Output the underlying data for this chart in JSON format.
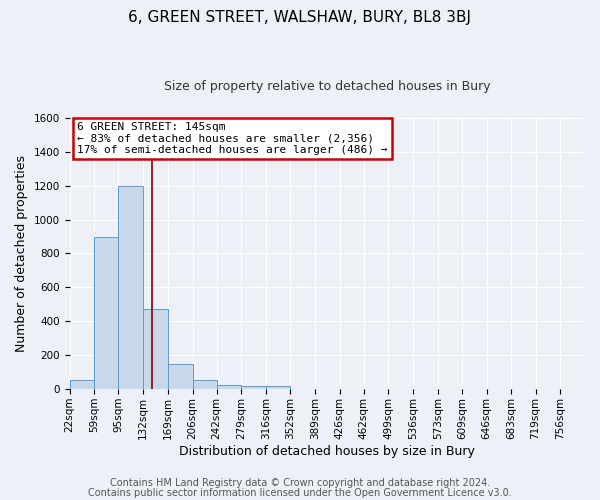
{
  "title": "6, GREEN STREET, WALSHAW, BURY, BL8 3BJ",
  "subtitle": "Size of property relative to detached houses in Bury",
  "xlabel": "Distribution of detached houses by size in Bury",
  "ylabel": "Number of detached properties",
  "footer1": "Contains HM Land Registry data © Crown copyright and database right 2024.",
  "footer2": "Contains public sector information licensed under the Open Government Licence v3.0.",
  "bin_labels": [
    "22sqm",
    "59sqm",
    "95sqm",
    "132sqm",
    "169sqm",
    "206sqm",
    "242sqm",
    "279sqm",
    "316sqm",
    "352sqm",
    "389sqm",
    "426sqm",
    "462sqm",
    "499sqm",
    "536sqm",
    "573sqm",
    "609sqm",
    "646sqm",
    "683sqm",
    "719sqm",
    "756sqm"
  ],
  "bin_edges": [
    22,
    59,
    95,
    132,
    169,
    206,
    242,
    279,
    316,
    352,
    389,
    426,
    462,
    499,
    536,
    573,
    609,
    646,
    683,
    719,
    756
  ],
  "bar_heights": [
    55,
    900,
    1200,
    470,
    150,
    55,
    25,
    20,
    20,
    0,
    0,
    0,
    0,
    0,
    0,
    0,
    0,
    0,
    0,
    0
  ],
  "bar_color": "#c8d8e8",
  "bar_edge_color": "#5b9bd5",
  "property_size": 145,
  "vline_color": "#8b0000",
  "annotation_line1": "6 GREEN STREET: 145sqm",
  "annotation_line2": "← 83% of detached houses are smaller (2,356)",
  "annotation_line3": "17% of semi-detached houses are larger (486) →",
  "annotation_box_color": "#cc0000",
  "ylim": [
    0,
    1600
  ],
  "yticks": [
    0,
    200,
    400,
    600,
    800,
    1000,
    1200,
    1400,
    1600
  ],
  "bg_color": "#edf1f7",
  "plot_bg_color": "#edf1f7",
  "grid_color": "#ffffff",
  "title_fontsize": 11,
  "subtitle_fontsize": 9,
  "axis_label_fontsize": 9,
  "tick_fontsize": 7.5,
  "footer_fontsize": 7,
  "annotation_fontsize": 8
}
